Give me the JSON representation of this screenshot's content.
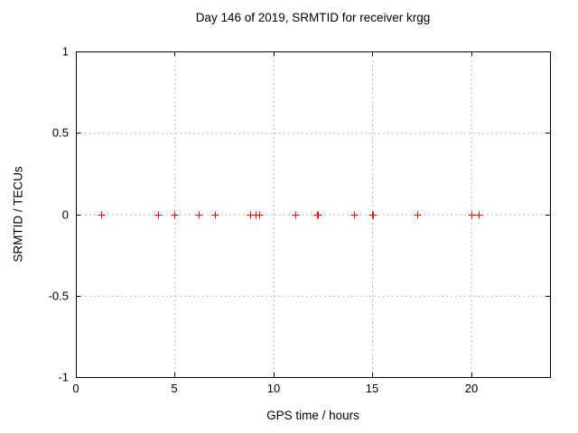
{
  "window": {
    "title": "Day 146 of 2019, SRMTID for receiver krgg"
  },
  "chart_data": {
    "type": "scatter",
    "title": "Day 146 of 2019, SRMTID for receiver krgg",
    "xlabel": "GPS time / hours",
    "ylabel": "SRMTID / TECUs",
    "xlim": [
      0,
      24
    ],
    "ylim": [
      -1,
      1
    ],
    "xticks": [
      0,
      5,
      10,
      15,
      20
    ],
    "xtick_labels": [
      "0",
      "5",
      "10",
      "15",
      "20"
    ],
    "yticks": [
      -1,
      -0.5,
      0,
      0.5,
      1
    ],
    "ytick_labels": [
      "-1",
      "-0.5",
      "0",
      "0.5",
      "1"
    ],
    "grid": true,
    "grid_color": "#b4b4b4",
    "border_color": "#000000",
    "marker": "plus",
    "marker_color": "#ff0000",
    "legend": "none",
    "series": [
      {
        "name": "SRMTID",
        "x": [
          1.3,
          4.15,
          5.0,
          6.2,
          7.05,
          8.8,
          9.1,
          9.3,
          11.1,
          12.2,
          12.25,
          14.1,
          15.0,
          15.05,
          17.3,
          20.0,
          20.4
        ],
        "y": [
          0,
          0,
          0,
          0,
          0,
          0,
          0,
          0,
          0,
          0,
          0,
          0,
          0,
          0,
          0,
          0,
          0
        ]
      }
    ]
  }
}
